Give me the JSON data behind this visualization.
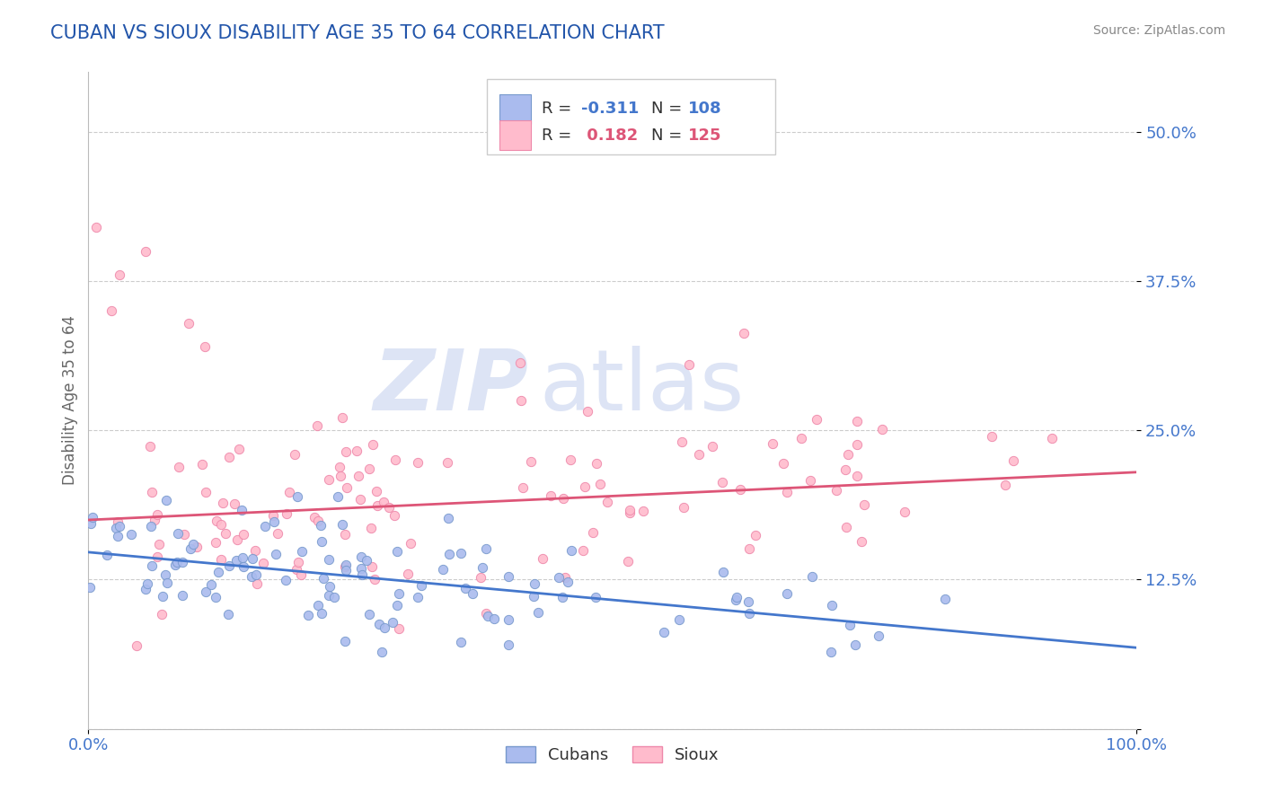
{
  "title": "CUBAN VS SIOUX DISABILITY AGE 35 TO 64 CORRELATION CHART",
  "source": "Source: ZipAtlas.com",
  "ylabel": "Disability Age 35 to 64",
  "title_color": "#2255aa",
  "axis_label_color": "#666666",
  "background_color": "#ffffff",
  "grid_color": "#cccccc",
  "cubans_color": "#aabbee",
  "sioux_color": "#ffbbcc",
  "cubans_edge_color": "#7799cc",
  "sioux_edge_color": "#ee88aa",
  "cubans_line_color": "#4477cc",
  "sioux_line_color": "#dd5577",
  "legend_text_color": "#333333",
  "R_cubans": -0.311,
  "N_cubans": 108,
  "R_sioux": 0.182,
  "N_sioux": 125,
  "xlim": [
    0.0,
    1.0
  ],
  "ylim": [
    0.0,
    0.55
  ],
  "yticks": [
    0.0,
    0.125,
    0.25,
    0.375,
    0.5
  ],
  "ytick_labels": [
    "",
    "12.5%",
    "25.0%",
    "37.5%",
    "50.0%"
  ],
  "xticks": [
    0.0,
    1.0
  ],
  "xtick_labels": [
    "0.0%",
    "100.0%"
  ],
  "tick_color": "#4477cc",
  "cuban_trend": [
    0.148,
    0.068
  ],
  "sioux_trend": [
    0.175,
    0.215
  ],
  "watermark_color": "#dde4f5",
  "source_color": "#888888"
}
